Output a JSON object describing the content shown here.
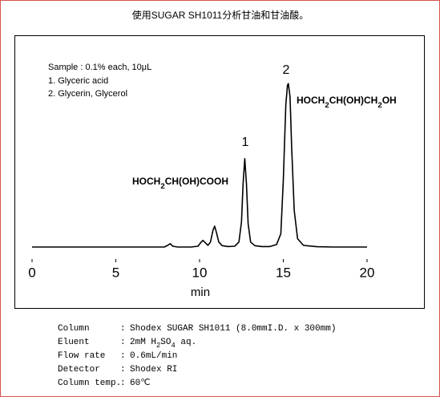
{
  "title": "使用SUGAR SH1011分析甘油和甘油酸。",
  "chart_data": {
    "type": "line",
    "x_label": "min",
    "xlim": [
      0,
      20
    ],
    "xticks": [
      0,
      5,
      10,
      15,
      20
    ],
    "ylim": [
      0,
      100
    ],
    "color": "#000000",
    "x": [
      0,
      2,
      4,
      6,
      7.9,
      8.1,
      8.25,
      8.4,
      8.7,
      9.5,
      9.9,
      10.1,
      10.2,
      10.35,
      10.5,
      10.65,
      10.8,
      10.9,
      11.0,
      11.15,
      11.35,
      11.7,
      12.1,
      12.35,
      12.5,
      12.6,
      12.7,
      12.8,
      12.9,
      13.05,
      13.3,
      13.7,
      14.2,
      14.6,
      14.85,
      15.0,
      15.15,
      15.25,
      15.3,
      15.4,
      15.5,
      15.65,
      15.85,
      16.2,
      17,
      18,
      20
    ],
    "values": [
      0,
      0,
      0,
      0,
      0,
      1,
      2,
      0.5,
      0,
      0,
      0.5,
      3,
      4,
      2.5,
      1,
      3,
      10,
      12.5,
      9,
      3,
      0.8,
      0.3,
      0.5,
      3,
      15,
      38,
      53,
      38,
      14,
      3,
      0.8,
      0.3,
      0.3,
      1.5,
      8,
      40,
      85,
      97,
      98,
      90,
      60,
      22,
      5,
      1,
      0.2,
      0,
      0
    ],
    "sample_notes": [
      "Sample : 0.1% each, 10μL",
      "1. Glyceric acid",
      "2. Glycerin, Glycerol"
    ],
    "peaks": [
      {
        "label": "1",
        "formula": [
          "HOCH",
          "2",
          "CH(OH)COOH"
        ]
      },
      {
        "label": "2",
        "formula": [
          "HOCH",
          "2",
          "CH(OH)CH",
          "2",
          "OH"
        ]
      }
    ]
  },
  "conditions": [
    {
      "label": "Column",
      "value": [
        "Shodex SUGAR SH1011 (8.0mmI.D. x 300mm)"
      ]
    },
    {
      "label": "Eluent",
      "value": [
        "2mM H",
        "2",
        "SO",
        "4",
        " aq."
      ]
    },
    {
      "label": "Flow rate",
      "value": [
        "0.6mL/min"
      ]
    },
    {
      "label": "Detector",
      "value": [
        "Shodex RI"
      ]
    },
    {
      "label": "Column temp.",
      "value": [
        "60℃"
      ]
    }
  ]
}
